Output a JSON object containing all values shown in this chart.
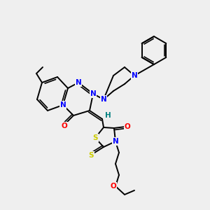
{
  "background_color": "#efefef",
  "bond_color": "#000000",
  "atom_colors": {
    "N": "#0000ff",
    "O": "#ff0000",
    "S": "#cccc00",
    "C": "#000000",
    "H": "#008080"
  },
  "figsize": [
    3.0,
    3.0
  ],
  "dpi": 100
}
